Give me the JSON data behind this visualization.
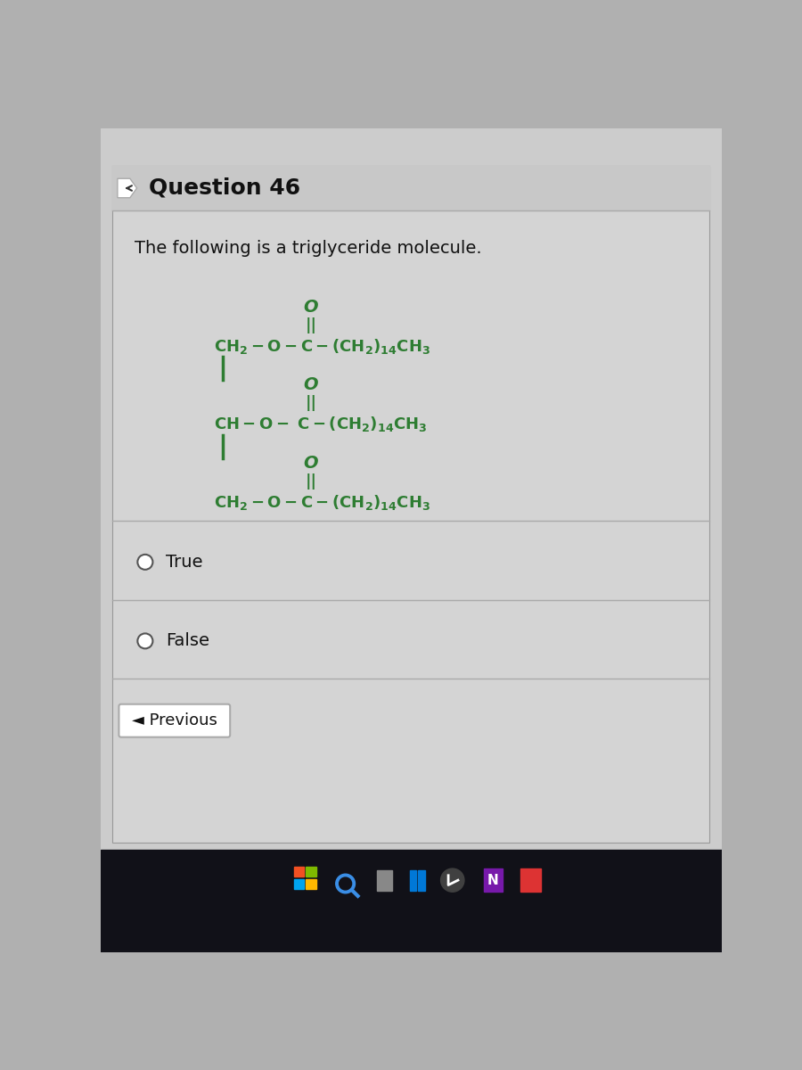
{
  "title": "Question 46",
  "subtitle": "The following is a triglyceride molecule.",
  "molecule_color": "#2e7d32",
  "option_true": "True",
  "option_false": "False",
  "previous_label": "◄ Previous",
  "bg_outer_color": "#b0b0b0",
  "bg_color": "#cccccc",
  "card_color": "#d4d4d4",
  "header_color": "#c8c8c8",
  "taskbar_color": "#111118",
  "title_fontsize": 18,
  "subtitle_fontsize": 14,
  "molecule_fontsize": 13,
  "option_fontsize": 14
}
